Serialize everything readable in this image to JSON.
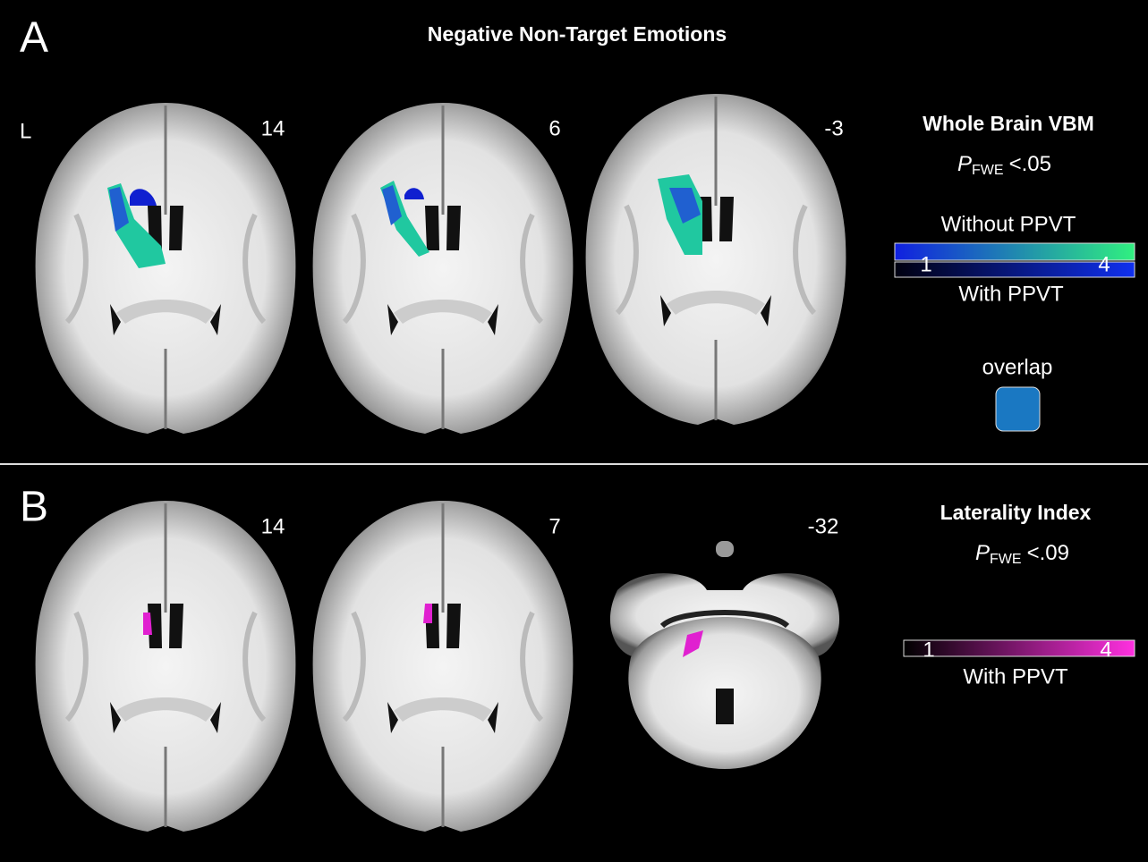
{
  "panel_a": {
    "label": "A",
    "title": "Negative Non-Target Emotions",
    "side_label": "L",
    "slices": [
      14,
      6,
      -3
    ],
    "legend": {
      "heading": "Whole Brain VBM",
      "p": "P",
      "p_sub": "FWE",
      "threshold": "<.05",
      "bar_top_label": "Without PPVT",
      "bar_min": 1,
      "bar_max": 4,
      "bar_bottom_label": "With PPVT",
      "overlap_label": "overlap"
    }
  },
  "panel_b": {
    "label": "B",
    "slices": [
      14,
      7,
      -32
    ],
    "legend": {
      "heading": "Laterality Index",
      "p": "P",
      "p_sub": "FWE",
      "threshold": "<.09",
      "bar_min": 1,
      "bar_max": 4,
      "bar_bottom_label": "With PPVT"
    }
  }
}
